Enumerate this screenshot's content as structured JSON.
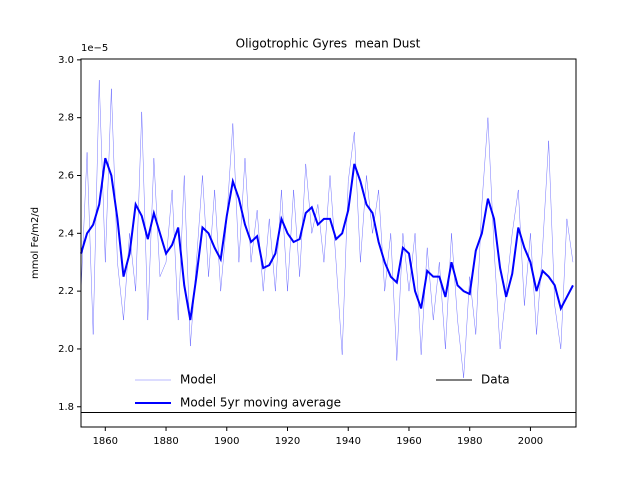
{
  "chart_data": {
    "type": "line",
    "title": "Oligotrophic Gyres  mean Dust",
    "y_label": "mmol Fe/m2/d",
    "y_offset_label": "1e−5",
    "x": [
      1852,
      1854,
      1856,
      1858,
      1860,
      1862,
      1864,
      1866,
      1868,
      1870,
      1872,
      1874,
      1876,
      1878,
      1880,
      1882,
      1884,
      1886,
      1888,
      1890,
      1892,
      1894,
      1896,
      1898,
      1900,
      1902,
      1904,
      1906,
      1908,
      1910,
      1912,
      1914,
      1916,
      1918,
      1920,
      1922,
      1924,
      1926,
      1928,
      1930,
      1932,
      1934,
      1936,
      1938,
      1940,
      1942,
      1944,
      1946,
      1948,
      1950,
      1952,
      1954,
      1956,
      1958,
      1960,
      1962,
      1964,
      1966,
      1968,
      1970,
      1972,
      1974,
      1976,
      1978,
      1980,
      1982,
      1984,
      1986,
      1988,
      1990,
      1992,
      1994,
      1996,
      1998,
      2000,
      2002,
      2004,
      2006,
      2008,
      2010,
      2012,
      2014
    ],
    "series": [
      {
        "name": "Model",
        "color": "#0000ff",
        "width": 0.5,
        "opacity": 0.55,
        "values": [
          2.2,
          2.68,
          2.05,
          2.93,
          2.3,
          2.9,
          2.3,
          2.1,
          2.4,
          2.2,
          2.82,
          2.1,
          2.66,
          2.25,
          2.3,
          2.55,
          2.1,
          2.6,
          2.01,
          2.3,
          2.6,
          2.25,
          2.55,
          2.2,
          2.45,
          2.78,
          2.3,
          2.66,
          2.3,
          2.48,
          2.2,
          2.45,
          2.2,
          2.55,
          2.2,
          2.55,
          2.25,
          2.64,
          2.4,
          2.5,
          2.3,
          2.6,
          2.3,
          1.98,
          2.58,
          2.75,
          2.3,
          2.6,
          2.4,
          2.55,
          2.2,
          2.4,
          1.96,
          2.4,
          2.2,
          2.4,
          1.98,
          2.35,
          2.1,
          2.3,
          2.0,
          2.4,
          2.1,
          1.9,
          2.25,
          2.05,
          2.5,
          2.8,
          2.35,
          2.0,
          2.2,
          2.4,
          2.55,
          2.15,
          2.4,
          2.05,
          2.35,
          2.72,
          2.15,
          2.0,
          2.45,
          2.3
        ]
      },
      {
        "name": "Model 5yr moving average",
        "color": "#0000ff",
        "width": 2,
        "opacity": 1,
        "values": [
          2.33,
          2.4,
          2.43,
          2.5,
          2.66,
          2.6,
          2.45,
          2.25,
          2.33,
          2.5,
          2.46,
          2.38,
          2.47,
          2.4,
          2.33,
          2.36,
          2.42,
          2.22,
          2.1,
          2.25,
          2.42,
          2.4,
          2.35,
          2.31,
          2.46,
          2.58,
          2.52,
          2.43,
          2.37,
          2.39,
          2.28,
          2.29,
          2.33,
          2.45,
          2.4,
          2.37,
          2.38,
          2.47,
          2.49,
          2.43,
          2.45,
          2.45,
          2.38,
          2.4,
          2.48,
          2.64,
          2.58,
          2.5,
          2.47,
          2.37,
          2.3,
          2.25,
          2.23,
          2.35,
          2.33,
          2.2,
          2.14,
          2.27,
          2.25,
          2.25,
          2.18,
          2.3,
          2.22,
          2.2,
          2.19,
          2.34,
          2.4,
          2.52,
          2.45,
          2.28,
          2.18,
          2.26,
          2.42,
          2.35,
          2.3,
          2.2,
          2.27,
          2.25,
          2.22,
          2.14,
          2.18,
          2.22
        ]
      }
    ],
    "data_line": {
      "name": "Data",
      "value": 1.78,
      "color": "#000000"
    },
    "xlim": [
      1852,
      2015
    ],
    "ylim": [
      1.73,
      3.003
    ],
    "xticks": [
      1860,
      1880,
      1900,
      1920,
      1940,
      1960,
      1980,
      2000
    ],
    "yticks": [
      1.8,
      {
        "value": 2,
        "label": "2.0"
      },
      2.2,
      2.4,
      2.6,
      2.8,
      {
        "value": 3,
        "label": "3.0"
      }
    ]
  }
}
